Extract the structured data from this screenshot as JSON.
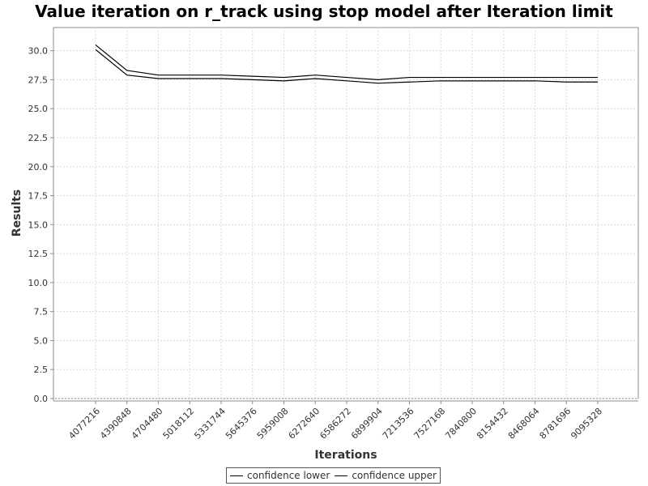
{
  "chart_data": {
    "type": "line",
    "title": "Value iteration on r_track using stop model after Iteration limit",
    "xlabel": "Iterations",
    "ylabel": "Results",
    "ylim": [
      0,
      32
    ],
    "yticks": [
      "0.0",
      "2.5",
      "5.0",
      "7.5",
      "10.0",
      "12.5",
      "15.0",
      "17.5",
      "20.0",
      "22.5",
      "25.0",
      "27.5",
      "30.0"
    ],
    "categories": [
      "4077216",
      "4390848",
      "4704480",
      "5018112",
      "5331744",
      "5645376",
      "5959008",
      "6272640",
      "6586272",
      "6899904",
      "7213536",
      "7527168",
      "7840800",
      "8154432",
      "8468064",
      "8781696",
      "9095328"
    ],
    "series": [
      {
        "name": "confidence lower",
        "color": "#000000",
        "values": [
          30.1,
          27.9,
          27.6,
          27.6,
          27.6,
          27.5,
          27.4,
          27.6,
          27.4,
          27.2,
          27.3,
          27.4,
          27.4,
          27.4,
          27.4,
          27.3,
          27.3
        ]
      },
      {
        "name": "confidence upper",
        "color": "#000000",
        "values": [
          30.5,
          28.3,
          27.9,
          27.9,
          27.9,
          27.8,
          27.7,
          27.9,
          27.7,
          27.5,
          27.7,
          27.7,
          27.7,
          27.7,
          27.7,
          27.7,
          27.7
        ]
      }
    ],
    "grid": true,
    "legend_position": "bottom-center"
  }
}
